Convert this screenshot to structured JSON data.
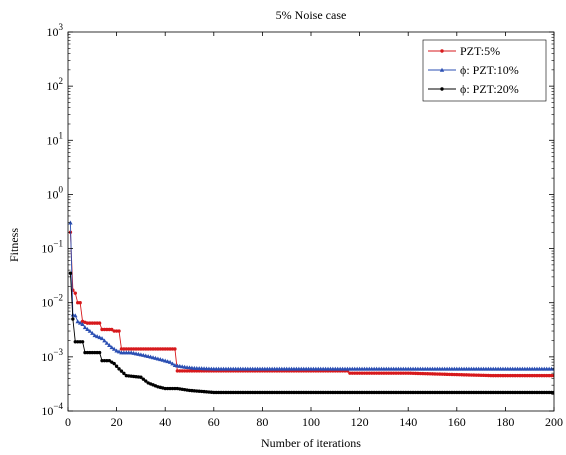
{
  "chart_data": {
    "type": "line",
    "title": "5% Noise case",
    "xlabel": "Number of iterations",
    "ylabel": "Fitness",
    "xlim": [
      0,
      200
    ],
    "ylim": [
      0.0001,
      1000
    ],
    "yscale": "log",
    "grid": false,
    "legend_position": "top-right",
    "x_ticks": [
      "0",
      "20",
      "40",
      "60",
      "80",
      "100",
      "120",
      "140",
      "160",
      "180",
      "200"
    ],
    "y_ticks": [
      {
        "base": "10",
        "exp": "3"
      },
      {
        "base": "10",
        "exp": "2"
      },
      {
        "base": "10",
        "exp": "1"
      },
      {
        "base": "10",
        "exp": "0"
      },
      {
        "base": "10",
        "exp": "−1"
      },
      {
        "base": "10",
        "exp": "−2"
      },
      {
        "base": "10",
        "exp": "−3"
      },
      {
        "base": "10",
        "exp": "−4"
      }
    ],
    "series": [
      {
        "name": "PZT:5%",
        "color": "#d7191c",
        "marker": "circle",
        "points": [
          [
            1,
            0.2
          ],
          [
            2,
            0.017
          ],
          [
            3,
            0.015
          ],
          [
            4,
            0.01
          ],
          [
            5,
            0.01
          ],
          [
            6,
            0.0045
          ],
          [
            8,
            0.0042
          ],
          [
            13,
            0.0042
          ],
          [
            14,
            0.0032
          ],
          [
            18,
            0.0032
          ],
          [
            19,
            0.003
          ],
          [
            21,
            0.003
          ],
          [
            22,
            0.0014
          ],
          [
            44,
            0.0014
          ],
          [
            45,
            0.00055
          ],
          [
            115,
            0.00055
          ],
          [
            116,
            0.0005
          ],
          [
            140,
            0.0005
          ],
          [
            160,
            0.00047
          ],
          [
            175,
            0.00045
          ],
          [
            200,
            0.00045
          ]
        ]
      },
      {
        "name": "ϕ: PZT:10%",
        "color": "#2b4fb3",
        "marker": "triangle",
        "points": [
          [
            1,
            0.3
          ],
          [
            2,
            0.006
          ],
          [
            3,
            0.0058
          ],
          [
            4,
            0.0045
          ],
          [
            6,
            0.004
          ],
          [
            7,
            0.0035
          ],
          [
            9,
            0.003
          ],
          [
            11,
            0.0025
          ],
          [
            14,
            0.0022
          ],
          [
            16,
            0.0018
          ],
          [
            18,
            0.0015
          ],
          [
            20,
            0.0013
          ],
          [
            22,
            0.0012
          ],
          [
            26,
            0.0012
          ],
          [
            30,
            0.0011
          ],
          [
            34,
            0.001
          ],
          [
            38,
            0.0009
          ],
          [
            42,
            0.0008
          ],
          [
            44,
            0.0007
          ],
          [
            48,
            0.00065
          ],
          [
            52,
            0.00062
          ],
          [
            60,
            0.0006
          ],
          [
            200,
            0.0006
          ]
        ]
      },
      {
        "name": "ϕ: PZT:20%",
        "color": "#000000",
        "marker": "circle",
        "points": [
          [
            1,
            0.035
          ],
          [
            2,
            0.005
          ],
          [
            3,
            0.0019
          ],
          [
            6,
            0.0019
          ],
          [
            7,
            0.0012
          ],
          [
            13,
            0.0012
          ],
          [
            14,
            0.00085
          ],
          [
            17,
            0.00085
          ],
          [
            19,
            0.00075
          ],
          [
            21,
            0.0006
          ],
          [
            24,
            0.00045
          ],
          [
            30,
            0.00042
          ],
          [
            33,
            0.00033
          ],
          [
            37,
            0.00028
          ],
          [
            40,
            0.00026
          ],
          [
            45,
            0.00026
          ],
          [
            50,
            0.00024
          ],
          [
            55,
            0.00023
          ],
          [
            60,
            0.00022
          ],
          [
            200,
            0.00022
          ]
        ]
      }
    ]
  }
}
